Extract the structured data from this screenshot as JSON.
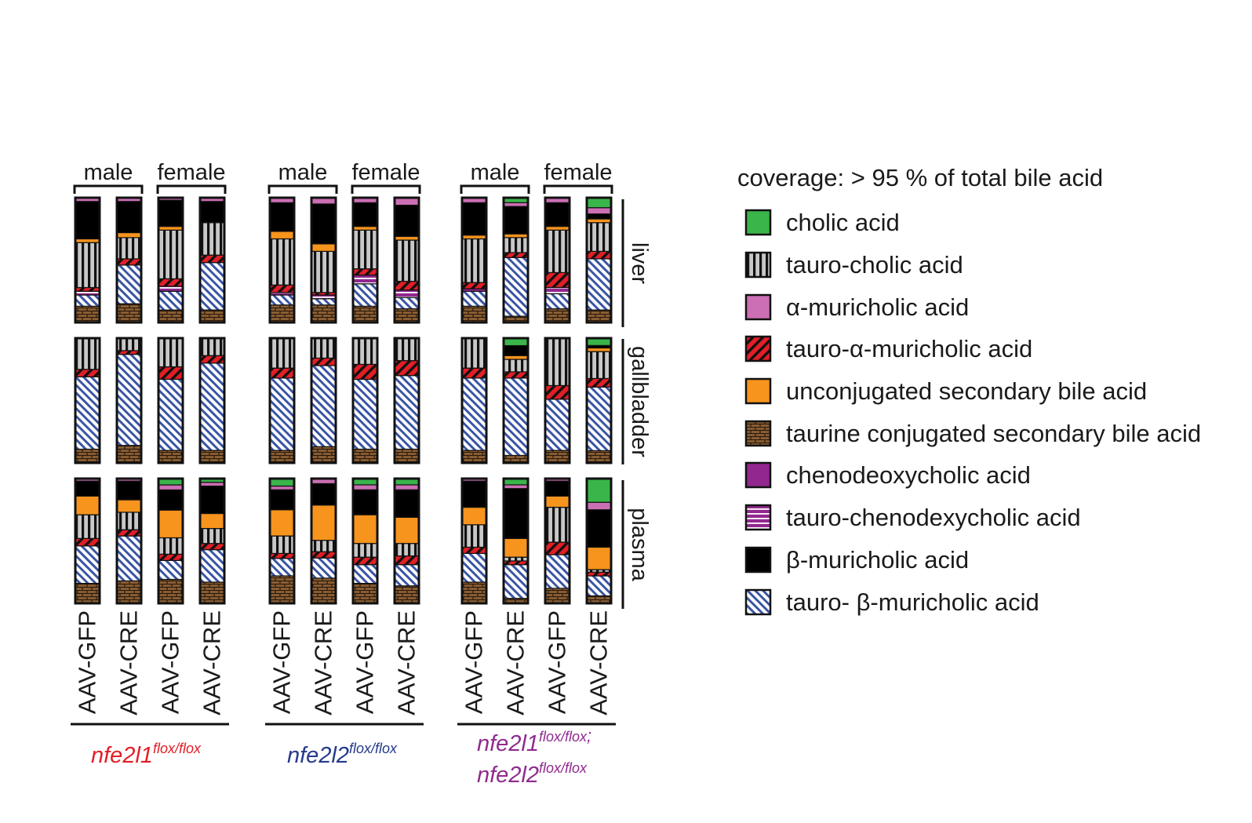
{
  "chart_data": {
    "type": "stacked-bar",
    "title": "coverage: > 95 % of total bile acid",
    "sex_labels": [
      "male",
      "female"
    ],
    "tissues": [
      "liver",
      "gallbladder",
      "plasma"
    ],
    "treatments": [
      "AAV-GFP",
      "AAV-CRE",
      "AAV-GFP",
      "AAV-CRE"
    ],
    "genotypes": [
      {
        "name": "nfe2l1",
        "sup": "flox/flox",
        "color": "#e21e26"
      },
      {
        "name": "nfe2l2",
        "sup": "flox/flox",
        "color": "#243a8c"
      },
      {
        "name": "nfe2l1",
        "sup": "flox/flox",
        "suffix": ";",
        "name2": "nfe2l2",
        "sup2": "flox/flox",
        "color": "#8f2a8e"
      }
    ],
    "stack_order": [
      "taurine conjugated secondary bile acid",
      "tauro- β-muricholic acid",
      "tauro-chenodexycholic acid",
      "tauro-α-muricholic acid",
      "tauro-cholic acid",
      "unconjugated secondary bile acid",
      "β-muricholic acid",
      "α-muricholic acid",
      "cholic acid"
    ],
    "legend": [
      {
        "label": "cholic acid",
        "key": "CA",
        "color": "#3ab54a",
        "pattern": "solid"
      },
      {
        "label": "tauro-cholic acid",
        "key": "TCA",
        "color": "#c8c8c8",
        "pattern": "vstripe"
      },
      {
        "label": "α-muricholic acid",
        "key": "aMCA",
        "color": "#cc6fb5",
        "pattern": "solid"
      },
      {
        "label": "tauro-α-muricholic acid",
        "key": "TaMCA",
        "color": "#e21e26",
        "pattern": "diag"
      },
      {
        "label": "unconjugated secondary bile acid",
        "key": "USBA",
        "color": "#f7941d",
        "pattern": "solid"
      },
      {
        "label": "taurine conjugated secondary bile acid",
        "key": "TSBA",
        "color": "#8b5e34",
        "pattern": "brick"
      },
      {
        "label": "chenodeoxycholic acid",
        "key": "CDCA",
        "color": "#92278f",
        "pattern": "solid"
      },
      {
        "label": "tauro-chenodexycholic acid",
        "key": "TCDCA",
        "color": "#92278f",
        "pattern": "hstripe"
      },
      {
        "label": "β-muricholic acid",
        "key": "bMCA",
        "color": "#000000",
        "pattern": "solid"
      },
      {
        "label": "tauro- β-muricholic acid",
        "key": "TbMCA",
        "color": "#3a55a4",
        "pattern": "diagblue"
      }
    ],
    "values_percent": {
      "liver": [
        [
          {
            "TSBA": 13,
            "TbMCA": 9,
            "TCDCA": 3,
            "TaMCA": 3,
            "TCA": 36,
            "USBA": 3,
            "bMCA": 30,
            "aMCA": 3
          },
          {
            "TSBA": 15,
            "TbMCA": 31,
            "TaMCA": 5,
            "TCA": 17,
            "USBA": 4,
            "bMCA": 25,
            "aMCA": 3
          },
          {
            "TSBA": 10,
            "TbMCA": 15,
            "TaMCA": 6,
            "TCDCA": 4,
            "TCA": 39,
            "USBA": 3,
            "bMCA": 21,
            "aMCA": 2
          },
          {
            "TSBA": 10,
            "TbMCA": 38,
            "TaMCA": 6,
            "TCA": 26,
            "bMCA": 17,
            "aMCA": 3
          }
        ],
        [
          {
            "TSBA": 14,
            "TbMCA": 8,
            "TaMCA": 6,
            "TCDCA": 2,
            "TCA": 37,
            "USBA": 6,
            "bMCA": 23,
            "aMCA": 4
          },
          {
            "TSBA": 14,
            "TbMCA": 5,
            "TCDCA": 3,
            "TaMCA": 2,
            "TCA": 33,
            "USBA": 6,
            "bMCA": 32,
            "aMCA": 5
          },
          {
            "TSBA": 13,
            "TbMCA": 18,
            "TCDCA": 7,
            "TaMCA": 5,
            "TCA": 31,
            "USBA": 3,
            "bMCA": 19,
            "aMCA": 4
          },
          {
            "TSBA": 11,
            "TbMCA": 9,
            "TaMCA": 7,
            "TCDCA": 6,
            "TCA": 33,
            "USBA": 3,
            "bMCA": 25,
            "aMCA": 6
          }
        ],
        [
          {
            "TSBA": 13,
            "TbMCA": 12,
            "TaMCA": 5,
            "TCDCA": 2,
            "TCA": 35,
            "USBA": 3,
            "bMCA": 26,
            "aMCA": 4
          },
          {
            "TSBA": 5,
            "TbMCA": 47,
            "TaMCA": 4,
            "TCA": 12,
            "USBA": 3,
            "bMCA": 22,
            "aMCA": 3,
            "CA": 4
          },
          {
            "TSBA": 11,
            "TbMCA": 12,
            "TaMCA": 12,
            "TCDCA": 5,
            "TCA": 34,
            "USBA": 3,
            "bMCA": 19,
            "aMCA": 4
          },
          {
            "TSBA": 10,
            "TbMCA": 41,
            "TaMCA": 6,
            "TCA": 23,
            "USBA": 3,
            "bMCA": 4,
            "aMCA": 5,
            "CA": 8
          }
        ]
      ],
      "gallbladder": [
        [
          {
            "TSBA": 11,
            "TbMCA": 58,
            "TaMCA": 6,
            "TCA": 25
          },
          {
            "TSBA": 14,
            "TbMCA": 73,
            "TaMCA": 3,
            "TCA": 10
          },
          {
            "TSBA": 10,
            "TbMCA": 57,
            "TaMCA": 10,
            "TCA": 23
          },
          {
            "TSBA": 10,
            "TbMCA": 70,
            "TaMCA": 6,
            "TCA": 14
          }
        ],
        [
          {
            "TSBA": 10,
            "TbMCA": 58,
            "TaMCA": 8,
            "TCA": 24
          },
          {
            "TSBA": 13,
            "TbMCA": 65,
            "TaMCA": 6,
            "TCA": 16
          },
          {
            "TSBA": 11,
            "TbMCA": 56,
            "TaMCA": 12,
            "TCA": 21
          },
          {
            "TSBA": 11,
            "TbMCA": 59,
            "TaMCA": 12,
            "TCA": 18
          }
        ],
        [
          {
            "TSBA": 10,
            "TbMCA": 58,
            "TaMCA": 8,
            "TCA": 24
          },
          {
            "TSBA": 6,
            "TbMCA": 62,
            "TaMCA": 5,
            "TCA": 10,
            "USBA": 3,
            "bMCA": 8,
            "CA": 6
          },
          {
            "TSBA": 10,
            "TbMCA": 41,
            "TaMCA": 11,
            "TCA": 38
          },
          {
            "TSBA": 10,
            "TbMCA": 52,
            "TaMCA": 7,
            "TCA": 22,
            "USBA": 3,
            "bMCA": 2,
            "CA": 6
          }
        ]
      ],
      "plasma": [
        [
          {
            "TSBA": 16,
            "TbMCA": 30,
            "TaMCA": 6,
            "TCA": 19,
            "USBA": 15,
            "bMCA": 12,
            "aMCA": 2
          },
          {
            "TSBA": 18,
            "TbMCA": 36,
            "TaMCA": 5,
            "TCA": 14,
            "USBA": 10,
            "bMCA": 15,
            "aMCA": 2
          },
          {
            "TSBA": 19,
            "TbMCA": 15,
            "TaMCA": 5,
            "TCA": 13,
            "USBA": 22,
            "bMCA": 16,
            "aMCA": 4,
            "CA": 5
          },
          {
            "TSBA": 17,
            "TbMCA": 26,
            "TaMCA": 5,
            "TCA": 12,
            "USBA": 12,
            "bMCA": 22,
            "aMCA": 3,
            "CA": 3
          }
        ],
        [
          {
            "TSBA": 22,
            "TbMCA": 14,
            "TaMCA": 4,
            "TCA": 14,
            "USBA": 21,
            "bMCA": 16,
            "aMCA": 3,
            "CA": 6
          },
          {
            "TSBA": 20,
            "TbMCA": 16,
            "TaMCA": 5,
            "TCA": 9,
            "USBA": 28,
            "bMCA": 17,
            "aMCA": 4
          },
          {
            "TSBA": 16,
            "TbMCA": 15,
            "TaMCA": 6,
            "TCA": 11,
            "USBA": 23,
            "bMCA": 20,
            "aMCA": 4,
            "CA": 5
          },
          {
            "TSBA": 14,
            "TbMCA": 17,
            "TaMCA": 7,
            "TCA": 10,
            "USBA": 21,
            "bMCA": 22,
            "aMCA": 4,
            "CA": 5
          }
        ],
        [
          {
            "TSBA": 17,
            "TbMCA": 23,
            "TaMCA": 5,
            "TCA": 18,
            "USBA": 14,
            "bMCA": 21,
            "aMCA": 2
          },
          {
            "TSBA": 4,
            "TbMCA": 27,
            "TaMCA": 3,
            "TCA": 3,
            "USBA": 15,
            "bMCA": 40,
            "aMCA": 3,
            "CA": 5
          },
          {
            "TSBA": 12,
            "TbMCA": 27,
            "TaMCA": 10,
            "TCA": 28,
            "USBA": 9,
            "bMCA": 12,
            "aMCA": 2
          },
          {
            "TSBA": 6,
            "TbMCA": 16,
            "TaMCA": 3,
            "TCA": 2,
            "USBA": 18,
            "bMCA": 30,
            "aMCA": 6,
            "CA": 19
          }
        ]
      ]
    }
  }
}
